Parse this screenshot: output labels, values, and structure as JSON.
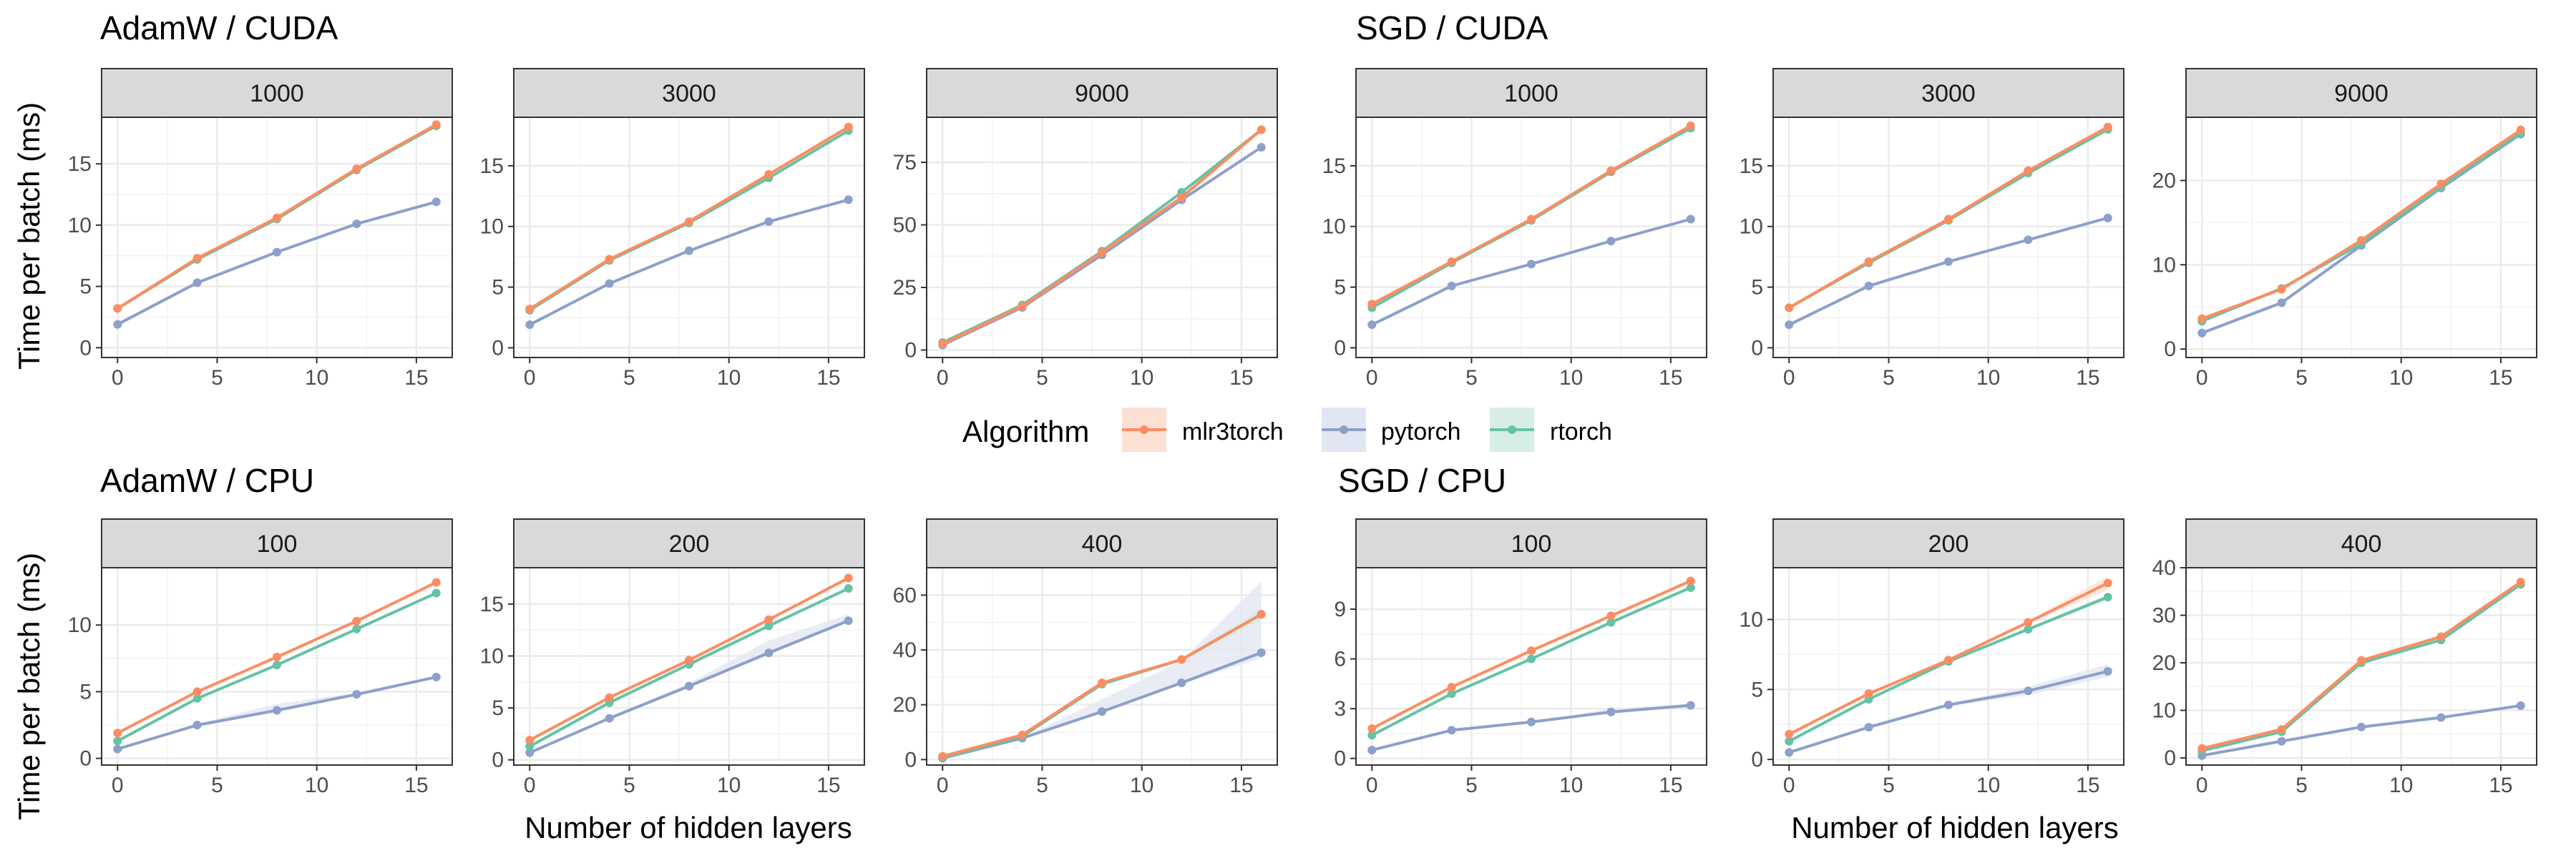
{
  "figure": {
    "y_axis_label": "Time per batch (ms)",
    "x_axis_label": "Number of hidden layers",
    "legend_title": "Algorithm",
    "legend": [
      {
        "name": "mlr3torch",
        "color": "#fc8d62",
        "fill": "#fde0d4"
      },
      {
        "name": "pytorch",
        "color": "#8da0cb",
        "fill": "#e2e6f2"
      },
      {
        "name": "rtorch",
        "color": "#66c2a5",
        "fill": "#d6eee6"
      }
    ],
    "groups": [
      {
        "title": "AdamW / CUDA"
      },
      {
        "title": "SGD / CUDA"
      },
      {
        "title": "AdamW / CPU"
      },
      {
        "title": "SGD / CPU"
      }
    ]
  },
  "chart_data": [
    {
      "type": "line",
      "group": "AdamW / CUDA",
      "facet": "1000",
      "x": [
        0,
        4,
        8,
        12,
        16
      ],
      "xlim": [
        -0.8,
        16.8
      ],
      "ylim": [
        -0.8,
        18.8
      ],
      "xticks": [
        0,
        5,
        10,
        15
      ],
      "yticks": [
        0,
        5,
        10,
        15
      ],
      "grid": true,
      "series": [
        {
          "name": "mlr3torch",
          "values": [
            3.2,
            7.3,
            10.6,
            14.6,
            18.2
          ]
        },
        {
          "name": "pytorch",
          "values": [
            1.9,
            5.3,
            7.8,
            10.1,
            11.9
          ]
        },
        {
          "name": "rtorch",
          "values": [
            3.2,
            7.2,
            10.5,
            14.5,
            18.1
          ]
        }
      ]
    },
    {
      "type": "line",
      "group": "AdamW / CUDA",
      "facet": "3000",
      "x": [
        0,
        4,
        8,
        12,
        16
      ],
      "xlim": [
        -0.8,
        16.8
      ],
      "ylim": [
        -0.8,
        19.0
      ],
      "xticks": [
        0,
        5,
        10,
        15
      ],
      "yticks": [
        0,
        5,
        10,
        15
      ],
      "grid": true,
      "series": [
        {
          "name": "mlr3torch",
          "values": [
            3.2,
            7.3,
            10.4,
            14.3,
            18.2
          ]
        },
        {
          "name": "pytorch",
          "values": [
            1.9,
            5.3,
            8.0,
            10.4,
            12.2
          ]
        },
        {
          "name": "rtorch",
          "values": [
            3.1,
            7.2,
            10.3,
            14.0,
            17.9
          ]
        }
      ]
    },
    {
      "type": "line",
      "group": "AdamW / CUDA",
      "facet": "9000",
      "x": [
        0,
        4,
        8,
        12,
        16
      ],
      "xlim": [
        -0.8,
        16.8
      ],
      "ylim": [
        -3.0,
        93.0
      ],
      "xticks": [
        0,
        5,
        10,
        15
      ],
      "yticks": [
        0,
        25,
        50,
        75
      ],
      "grid": true,
      "series": [
        {
          "name": "mlr3torch",
          "values": [
            2.5,
            17.5,
            39.0,
            61.0,
            88.0
          ]
        },
        {
          "name": "pytorch",
          "values": [
            2.0,
            17.0,
            38.0,
            60.0,
            81.0
          ]
        },
        {
          "name": "rtorch",
          "values": [
            3.0,
            18.0,
            39.5,
            63.0,
            88.0
          ]
        }
      ]
    },
    {
      "type": "line",
      "group": "SGD / CUDA",
      "facet": "1000",
      "x": [
        0,
        4,
        8,
        12,
        16
      ],
      "xlim": [
        -0.8,
        16.8
      ],
      "ylim": [
        -0.8,
        19.0
      ],
      "xticks": [
        0,
        5,
        10,
        15
      ],
      "yticks": [
        0,
        5,
        10,
        15
      ],
      "grid": true,
      "series": [
        {
          "name": "mlr3torch",
          "values": [
            3.6,
            7.1,
            10.6,
            14.6,
            18.3
          ]
        },
        {
          "name": "pytorch",
          "values": [
            1.9,
            5.1,
            6.9,
            8.8,
            10.6
          ]
        },
        {
          "name": "rtorch",
          "values": [
            3.3,
            7.0,
            10.5,
            14.5,
            18.1
          ]
        }
      ]
    },
    {
      "type": "line",
      "group": "SGD / CUDA",
      "facet": "3000",
      "x": [
        0,
        4,
        8,
        12,
        16
      ],
      "xlim": [
        -0.8,
        16.8
      ],
      "ylim": [
        -0.8,
        19.0
      ],
      "xticks": [
        0,
        5,
        10,
        15
      ],
      "yticks": [
        0,
        5,
        10,
        15
      ],
      "grid": true,
      "series": [
        {
          "name": "mlr3torch",
          "values": [
            3.3,
            7.1,
            10.6,
            14.6,
            18.2
          ]
        },
        {
          "name": "pytorch",
          "values": [
            1.9,
            5.1,
            7.1,
            8.9,
            10.7
          ]
        },
        {
          "name": "rtorch",
          "values": [
            3.3,
            7.0,
            10.5,
            14.4,
            18.0
          ]
        }
      ]
    },
    {
      "type": "line",
      "group": "SGD / CUDA",
      "facet": "9000",
      "x": [
        0,
        4,
        8,
        12,
        16
      ],
      "xlim": [
        -0.8,
        16.8
      ],
      "ylim": [
        -1.0,
        27.5
      ],
      "xticks": [
        0,
        5,
        10,
        15
      ],
      "yticks": [
        0,
        10,
        20
      ],
      "grid": true,
      "series": [
        {
          "name": "mlr3torch",
          "values": [
            3.6,
            7.1,
            12.9,
            19.6,
            26.0
          ]
        },
        {
          "name": "pytorch",
          "values": [
            1.9,
            5.5,
            12.3,
            19.1,
            25.5
          ]
        },
        {
          "name": "rtorch",
          "values": [
            3.3,
            7.2,
            12.5,
            19.3,
            25.6
          ]
        }
      ]
    },
    {
      "type": "line",
      "group": "AdamW / CPU",
      "facet": "100",
      "x": [
        0,
        4,
        8,
        12,
        16
      ],
      "xlim": [
        -0.8,
        16.8
      ],
      "ylim": [
        -0.5,
        14.3
      ],
      "xticks": [
        0,
        5,
        10,
        15
      ],
      "yticks": [
        0,
        5,
        10
      ],
      "grid": true,
      "series": [
        {
          "name": "mlr3torch",
          "values": [
            1.9,
            5.0,
            7.6,
            10.3,
            13.2
          ],
          "lower": [
            1.9,
            5.0,
            7.6,
            10.3,
            13.2
          ],
          "upper": [
            1.9,
            5.0,
            7.6,
            10.3,
            13.2
          ]
        },
        {
          "name": "pytorch",
          "values": [
            0.7,
            2.5,
            3.6,
            4.8,
            6.1
          ],
          "lower": [
            0.7,
            2.4,
            3.5,
            4.7,
            6.0
          ],
          "upper": [
            0.7,
            2.6,
            4.1,
            4.9,
            6.2
          ]
        },
        {
          "name": "rtorch",
          "values": [
            1.3,
            4.5,
            7.0,
            9.7,
            12.4
          ],
          "lower": [
            1.3,
            4.5,
            7.0,
            9.7,
            12.4
          ],
          "upper": [
            1.3,
            4.5,
            7.0,
            9.7,
            12.4
          ]
        }
      ]
    },
    {
      "type": "line",
      "group": "AdamW / CPU",
      "facet": "200",
      "x": [
        0,
        4,
        8,
        12,
        16
      ],
      "xlim": [
        -0.8,
        16.8
      ],
      "ylim": [
        -0.5,
        18.5
      ],
      "xticks": [
        0,
        5,
        10,
        15
      ],
      "yticks": [
        0,
        5,
        10,
        15
      ],
      "grid": true,
      "series": [
        {
          "name": "mlr3torch",
          "values": [
            1.9,
            6.0,
            9.6,
            13.5,
            17.5
          ],
          "lower": [
            1.9,
            6.0,
            9.6,
            13.5,
            17.3
          ],
          "upper": [
            1.9,
            6.0,
            9.6,
            13.6,
            17.7
          ]
        },
        {
          "name": "pytorch",
          "values": [
            0.7,
            4.0,
            7.1,
            10.3,
            13.4
          ],
          "lower": [
            0.7,
            4.0,
            7.0,
            10.1,
            13.3
          ],
          "upper": [
            0.7,
            4.1,
            7.4,
            11.5,
            14.0
          ]
        },
        {
          "name": "rtorch",
          "values": [
            1.3,
            5.5,
            9.2,
            12.9,
            16.5
          ],
          "lower": [
            1.3,
            5.5,
            9.2,
            12.8,
            16.4
          ],
          "upper": [
            1.3,
            5.5,
            9.2,
            13.0,
            16.6
          ]
        }
      ]
    },
    {
      "type": "line",
      "group": "AdamW / CPU",
      "facet": "400",
      "x": [
        0,
        4,
        8,
        12,
        16
      ],
      "xlim": [
        -0.8,
        16.8
      ],
      "ylim": [
        -2.0,
        70.0
      ],
      "xticks": [
        0,
        5,
        10,
        15
      ],
      "yticks": [
        0,
        20,
        40,
        60
      ],
      "grid": true,
      "series": [
        {
          "name": "mlr3torch",
          "values": [
            1.2,
            9.0,
            28.0,
            36.5,
            53.0
          ],
          "lower": [
            1.2,
            9.0,
            27.5,
            36.0,
            51.0
          ],
          "upper": [
            1.2,
            9.0,
            28.5,
            37.0,
            55.0
          ]
        },
        {
          "name": "pytorch",
          "values": [
            0.5,
            7.8,
            17.5,
            28.0,
            39.0
          ],
          "lower": [
            0.5,
            7.5,
            17.0,
            27.5,
            37.0
          ],
          "upper": [
            0.5,
            8.0,
            22.0,
            36.0,
            65.0
          ]
        },
        {
          "name": "rtorch",
          "values": [
            0.8,
            8.5,
            27.5,
            36.5,
            53.0
          ],
          "lower": [
            0.8,
            8.5,
            27.0,
            36.0,
            51.0
          ],
          "upper": [
            0.8,
            8.5,
            28.0,
            37.0,
            55.0
          ]
        }
      ]
    },
    {
      "type": "line",
      "group": "SGD / CPU",
      "facet": "100",
      "x": [
        0,
        4,
        8,
        12,
        16
      ],
      "xlim": [
        -0.8,
        16.8
      ],
      "ylim": [
        -0.4,
        11.5
      ],
      "xticks": [
        0,
        5,
        10,
        15
      ],
      "yticks": [
        0,
        3,
        6,
        9
      ],
      "grid": true,
      "series": [
        {
          "name": "mlr3torch",
          "values": [
            1.8,
            4.3,
            6.5,
            8.6,
            10.7
          ],
          "lower": [
            1.8,
            4.3,
            6.5,
            8.6,
            10.6
          ],
          "upper": [
            1.8,
            4.3,
            6.5,
            8.6,
            10.8
          ]
        },
        {
          "name": "pytorch",
          "values": [
            0.5,
            1.7,
            2.2,
            2.8,
            3.2
          ],
          "lower": [
            0.5,
            1.7,
            2.2,
            2.7,
            3.1
          ],
          "upper": [
            0.5,
            1.7,
            2.2,
            3.0,
            3.3
          ]
        },
        {
          "name": "rtorch",
          "values": [
            1.4,
            3.9,
            6.0,
            8.2,
            10.3
          ],
          "lower": [
            1.4,
            3.9,
            6.0,
            8.2,
            10.2
          ],
          "upper": [
            1.4,
            3.9,
            6.0,
            8.2,
            10.4
          ]
        }
      ]
    },
    {
      "type": "line",
      "group": "SGD / CPU",
      "facet": "200",
      "x": [
        0,
        4,
        8,
        12,
        16
      ],
      "xlim": [
        -0.8,
        16.8
      ],
      "ylim": [
        -0.4,
        13.7
      ],
      "xticks": [
        0,
        5,
        10,
        15
      ],
      "yticks": [
        0,
        5,
        10
      ],
      "grid": true,
      "series": [
        {
          "name": "mlr3torch",
          "values": [
            1.8,
            4.7,
            7.1,
            9.8,
            12.6
          ],
          "lower": [
            1.8,
            4.7,
            7.1,
            9.7,
            12.1
          ],
          "upper": [
            1.8,
            4.7,
            7.1,
            9.9,
            13.1
          ]
        },
        {
          "name": "pytorch",
          "values": [
            0.5,
            2.3,
            3.9,
            4.9,
            6.3
          ],
          "lower": [
            0.5,
            2.3,
            3.8,
            4.6,
            5.9
          ],
          "upper": [
            0.5,
            2.3,
            4.0,
            5.2,
            6.8
          ]
        },
        {
          "name": "rtorch",
          "values": [
            1.3,
            4.3,
            7.0,
            9.3,
            11.6
          ],
          "lower": [
            1.3,
            4.3,
            7.0,
            9.2,
            11.4
          ],
          "upper": [
            1.3,
            4.3,
            7.0,
            9.4,
            11.8
          ]
        }
      ]
    },
    {
      "type": "line",
      "group": "SGD / CPU",
      "facet": "400",
      "x": [
        0,
        4,
        8,
        12,
        16
      ],
      "xlim": [
        -0.8,
        16.8
      ],
      "ylim": [
        -1.5,
        40.0
      ],
      "xticks": [
        0,
        5,
        10,
        15
      ],
      "yticks": [
        0,
        10,
        20,
        30,
        40
      ],
      "grid": true,
      "series": [
        {
          "name": "mlr3torch",
          "values": [
            2.0,
            6.0,
            20.5,
            25.5,
            37.0
          ],
          "lower": [
            2.0,
            6.0,
            20.3,
            25.3,
            36.7
          ],
          "upper": [
            2.0,
            6.0,
            20.7,
            25.7,
            37.3
          ]
        },
        {
          "name": "pytorch",
          "values": [
            0.5,
            3.5,
            6.5,
            8.5,
            11.0
          ],
          "lower": [
            0.5,
            3.5,
            6.4,
            8.4,
            10.9
          ],
          "upper": [
            0.5,
            3.5,
            6.6,
            8.6,
            11.1
          ]
        },
        {
          "name": "rtorch",
          "values": [
            1.5,
            5.5,
            20.0,
            24.8,
            36.5
          ],
          "lower": [
            1.5,
            5.5,
            19.8,
            24.6,
            36.2
          ],
          "upper": [
            1.5,
            5.5,
            20.2,
            25.0,
            36.8
          ]
        }
      ]
    }
  ]
}
